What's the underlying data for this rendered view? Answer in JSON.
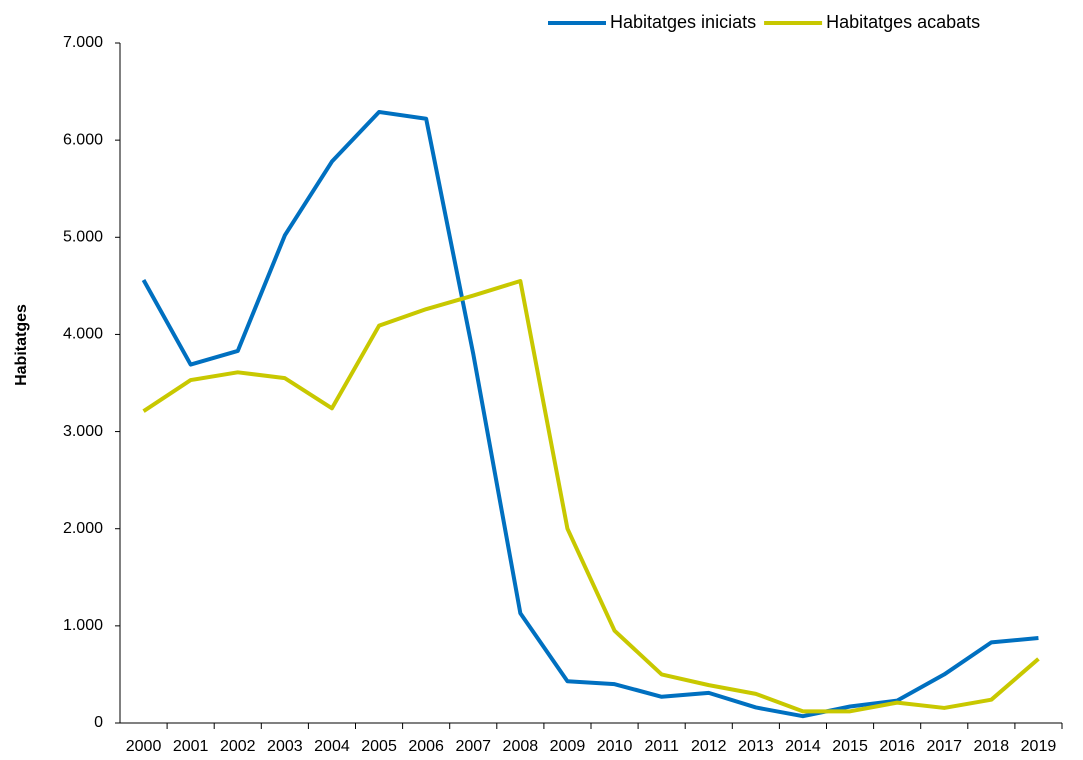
{
  "chart_data": {
    "type": "line",
    "y_label": "Habitatges",
    "categories": [
      "2000",
      "2001",
      "2002",
      "2003",
      "2004",
      "2005",
      "2006",
      "2007",
      "2008",
      "2009",
      "2010",
      "2011",
      "2012",
      "2013",
      "2014",
      "2015",
      "2016",
      "2017",
      "2018",
      "2019"
    ],
    "series": [
      {
        "name": "Habitatges iniciats",
        "color": "#0070c0",
        "values": [
          4560,
          3690,
          3830,
          5020,
          5780,
          6290,
          6220,
          3800,
          1130,
          430,
          400,
          270,
          310,
          160,
          70,
          170,
          230,
          500,
          830,
          875
        ]
      },
      {
        "name": "Habitatges acabats",
        "color": "#c8c800",
        "values": [
          3210,
          3530,
          3610,
          3550,
          3240,
          4090,
          4260,
          4400,
          4550,
          2000,
          950,
          500,
          390,
          300,
          120,
          120,
          210,
          155,
          240,
          660
        ]
      }
    ],
    "ylim": [
      0,
      7000
    ],
    "yticks": [
      0,
      {
        "value": 1000,
        "label": "1.000"
      },
      {
        "value": 2000,
        "label": "2.000"
      },
      {
        "value": 3000,
        "label": "3.000"
      },
      {
        "value": 4000,
        "label": "4.000"
      },
      {
        "value": 5000,
        "label": "5.000"
      },
      {
        "value": 6000,
        "label": "6.000"
      },
      {
        "value": 7000,
        "label": "7.000"
      }
    ],
    "legend": "top-right"
  }
}
